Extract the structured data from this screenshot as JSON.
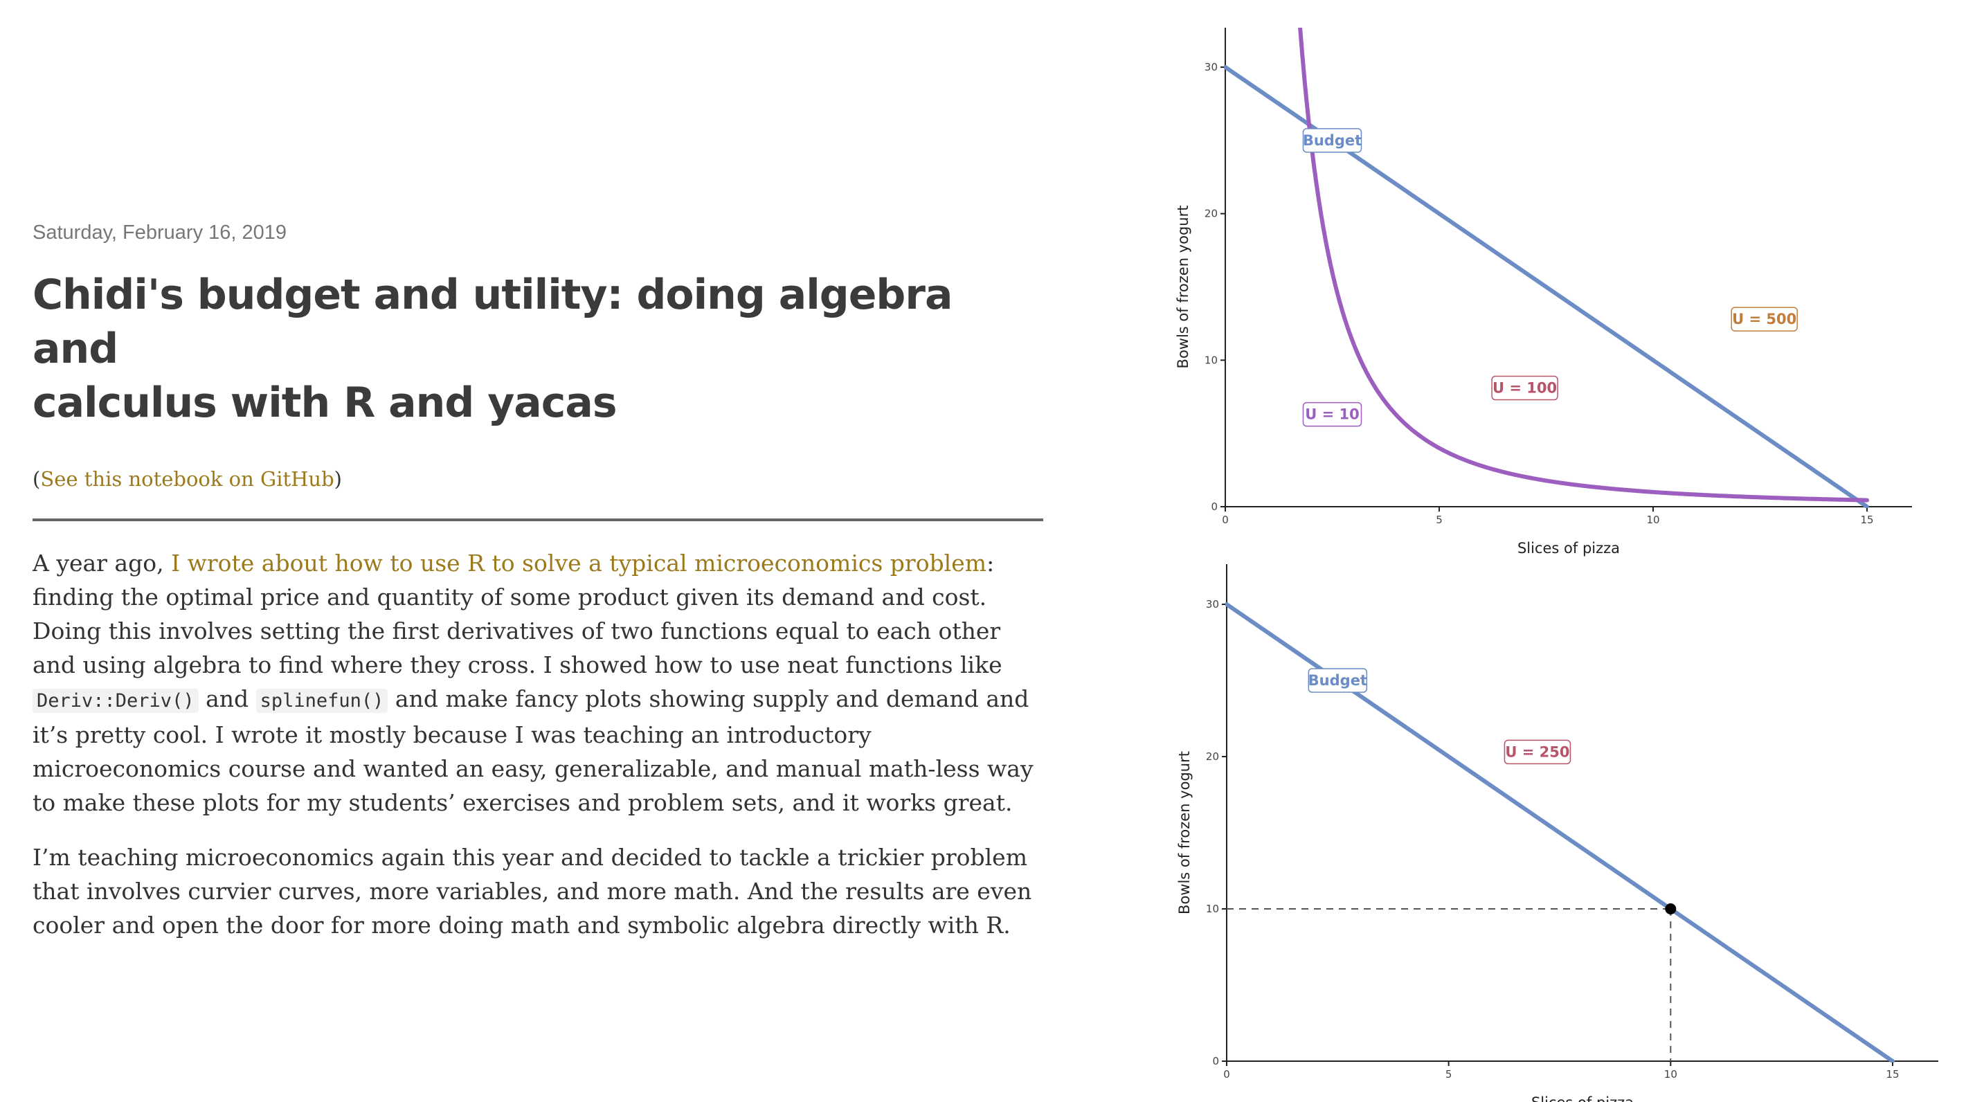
{
  "post": {
    "date": "Saturday, February 16, 2019",
    "title_line1": "Chidi's budget and utility: doing algebra and",
    "title_line2": "calculus with R and yacas",
    "notebook_open": "(",
    "notebook_link": "See this notebook on GitHub",
    "notebook_close": ")",
    "p1_a": "A year ago, ",
    "p1_link": "I wrote about how to use R to solve a typical microeconomics problem",
    "p1_b": ": finding the optimal price and quantity of some product given its demand and cost. Doing this involves setting the first derivatives of two functions equal to each other and using algebra to find where they cross. I showed how to use neat functions like ",
    "p1_code1": "Deriv::Deriv()",
    "p1_c": " and ",
    "p1_code2": "splinefun()",
    "p1_d": " and make fancy plots showing supply and demand and it’s pretty cool. I wrote it mostly because I was teaching an introductory microeconomics course and wanted an easy, generalizable, and manual math-less way to make these plots for my students’ exercises and problem sets, and it works great.",
    "p2": "I’m teaching microeconomics again this year and decided to tackle a trickier problem that involves curvier curves, more variables, and more math. And the results are even cooler and open the door for more doing math and symbolic algebra directly with R."
  },
  "colors": {
    "link": "#9c7a1c",
    "budget": "#6b8cc4",
    "u10": "#9d5fbf",
    "u100": "#b85468",
    "u500": "#c07d3c",
    "u250": "#b85468"
  },
  "chart_data": [
    {
      "type": "line",
      "xlabel": "Slices of pizza",
      "ylabel": "Bowls of frozen yogurt",
      "xlim": [
        0,
        15
      ],
      "ylim": [
        0,
        30
      ],
      "xticks": [
        0,
        5,
        10,
        15
      ],
      "yticks": [
        0,
        10,
        20,
        30
      ],
      "series": [
        {
          "name": "Budget",
          "kind": "budget",
          "x": [
            0,
            15
          ],
          "y": [
            30,
            0
          ],
          "color": "#6b8cc4",
          "label_at": [
            2.5,
            25
          ]
        },
        {
          "name": "U = 10",
          "kind": "utility",
          "u": 10,
          "color": "#9d5fbf",
          "label_at": [
            2.5,
            6.3
          ]
        },
        {
          "name": "U = 100",
          "kind": "utility",
          "u": 100,
          "color": "#b85468",
          "label_at": [
            7.0,
            8.1
          ]
        },
        {
          "name": "U = 500",
          "kind": "utility",
          "u": 500,
          "color": "#c07d3c",
          "label_at": [
            12.6,
            12.8
          ]
        }
      ]
    },
    {
      "type": "line",
      "xlabel": "Slices of pizza",
      "ylabel": "Bowls of frozen yogurt",
      "xlim": [
        0,
        15
      ],
      "ylim": [
        0,
        30
      ],
      "xticks": [
        0,
        5,
        10,
        15
      ],
      "yticks": [
        0,
        10,
        20,
        30
      ],
      "series": [
        {
          "name": "Budget",
          "kind": "budget",
          "x": [
            0,
            15
          ],
          "y": [
            30,
            0
          ],
          "color": "#6b8cc4",
          "label_at": [
            2.5,
            25
          ]
        },
        {
          "name": "U = 250",
          "kind": "utility",
          "u": 250,
          "color": "#b85468",
          "label_at": [
            7.0,
            20.3
          ]
        }
      ],
      "optimum": {
        "x": 10,
        "y": 10
      }
    }
  ]
}
